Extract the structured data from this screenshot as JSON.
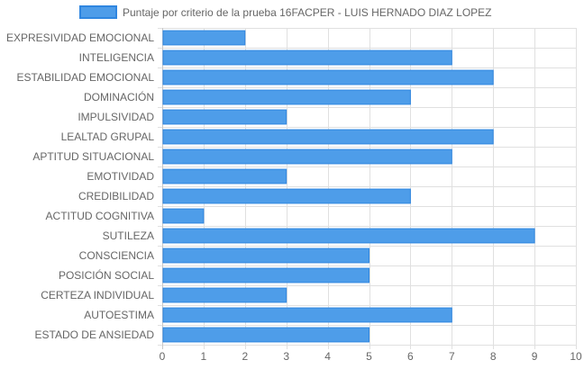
{
  "chart_data": {
    "type": "bar",
    "orientation": "horizontal",
    "categories": [
      "EXPRESIVIDAD EMOCIONAL",
      "INTELIGENCIA",
      "ESTABILIDAD EMOCIONAL",
      "DOMINACIÓN",
      "IMPULSIVIDAD",
      "LEALTAD GRUPAL",
      "APTITUD SITUACIONAL",
      "EMOTIVIDAD",
      "CREDIBILIDAD",
      "ACTITUD COGNITIVA",
      "SUTILEZA",
      "CONSCIENCIA",
      "POSICIÓN SOCIAL",
      "CERTEZA INDIVIDUAL",
      "AUTOESTIMA",
      "ESTADO DE ANSIEDAD"
    ],
    "series": [
      {
        "name": "Puntaje por criterio de la prueba 16FACPER - LUIS HERNADO DIAZ LOPEZ",
        "values": [
          2,
          7,
          8,
          6,
          3,
          8,
          7,
          3,
          6,
          1,
          9,
          5,
          5,
          3,
          7,
          5
        ]
      }
    ],
    "xlim": [
      0,
      10
    ],
    "xticks": [
      "0",
      "1",
      "2",
      "3",
      "4",
      "5",
      "6",
      "7",
      "8",
      "9",
      "10"
    ],
    "grid": true,
    "legend_position": "top",
    "colors": {
      "bar_fill": "#4e9de9",
      "bar_stroke": "#2f86e0",
      "grid": "#e0e0e0",
      "text": "#666666"
    }
  }
}
